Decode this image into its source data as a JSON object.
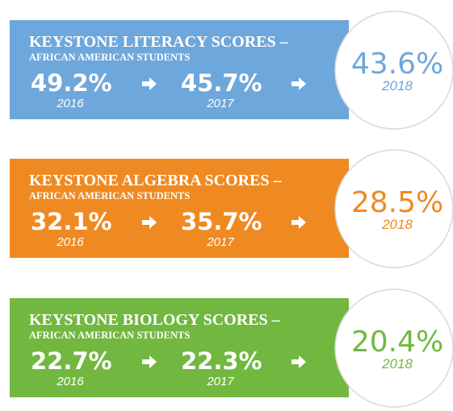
{
  "panels": [
    {
      "title": "KEYSTONE LITERACY SCORES –",
      "subtitle": "AFRICAN AMERICAN STUDENTS",
      "color": "#6ea7db",
      "items": [
        {
          "value": "49.2%",
          "year": "2016"
        },
        {
          "value": "45.7%",
          "year": "2017"
        },
        {
          "value": "43.6%",
          "year": "2018"
        }
      ]
    },
    {
      "title": "KEYSTONE ALGEBRA SCORES –",
      "subtitle": "AFRICAN AMERICAN STUDENTS",
      "color": "#ef8a22",
      "items": [
        {
          "value": "32.1%",
          "year": "2016"
        },
        {
          "value": "35.7%",
          "year": "2017"
        },
        {
          "value": "28.5%",
          "year": "2018"
        }
      ]
    },
    {
      "title": "KEYSTONE BIOLOGY SCORES –",
      "subtitle": "AFRICAN AMERICAN STUDENTS",
      "color": "#72b840",
      "items": [
        {
          "value": "22.7%",
          "year": "2016"
        },
        {
          "value": "22.3%",
          "year": "2017"
        },
        {
          "value": "20.4%",
          "year": "2018"
        }
      ]
    }
  ]
}
